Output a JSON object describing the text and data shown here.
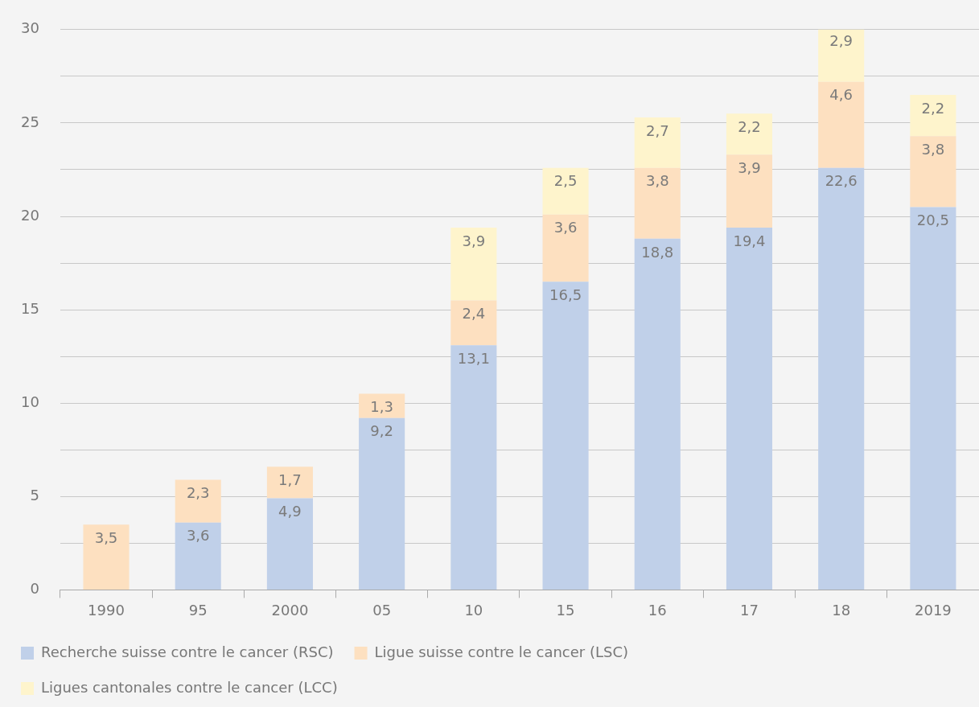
{
  "chart_data": {
    "type": "bar",
    "stacked": true,
    "categories": [
      "1990",
      "95",
      "2000",
      "05",
      "10",
      "15",
      "16",
      "17",
      "18",
      "2019"
    ],
    "series": [
      {
        "name": "Recherche suisse contre le cancer (RSC)",
        "color": "#c0d0e9",
        "values": [
          null,
          3.6,
          4.9,
          9.2,
          13.1,
          16.5,
          18.8,
          19.4,
          22.6,
          20.5
        ],
        "value_labels": [
          null,
          "3,6",
          "4,9",
          "9,2",
          "13,1",
          "16,5",
          "18,8",
          "19,4",
          "22,6",
          "20,5"
        ]
      },
      {
        "name": "Ligue suisse contre le cancer (LSC)",
        "color": "#fde0c0",
        "values": [
          3.5,
          2.3,
          1.7,
          1.3,
          2.4,
          3.6,
          3.8,
          3.9,
          4.6,
          3.8
        ],
        "value_labels": [
          "3,5",
          "2,3",
          "1,7",
          "1,3",
          "2,4",
          "3,6",
          "3,8",
          "3,9",
          "4,6",
          "3,8"
        ]
      },
      {
        "name": "Ligues cantonales contre le cancer (LCC)",
        "color": "#fef4cc",
        "values": [
          null,
          null,
          null,
          null,
          3.9,
          2.5,
          2.7,
          2.2,
          2.9,
          2.2
        ],
        "value_labels": [
          null,
          null,
          null,
          null,
          "3,9",
          "2,5",
          "2,7",
          "2,2",
          "2,9",
          "2,2"
        ]
      }
    ],
    "ylim": [
      0,
      30
    ],
    "yticks": [
      0,
      {
        "value": 2.5,
        "label": null
      },
      5,
      {
        "value": 7.5,
        "label": null
      },
      10,
      {
        "value": 12.5,
        "label": null
      },
      15,
      {
        "value": 17.5,
        "label": null
      },
      20,
      {
        "value": 22.5,
        "label": null
      },
      25,
      {
        "value": 27.5,
        "label": null
      },
      30
    ],
    "grid": "y",
    "legend": "bottom"
  }
}
